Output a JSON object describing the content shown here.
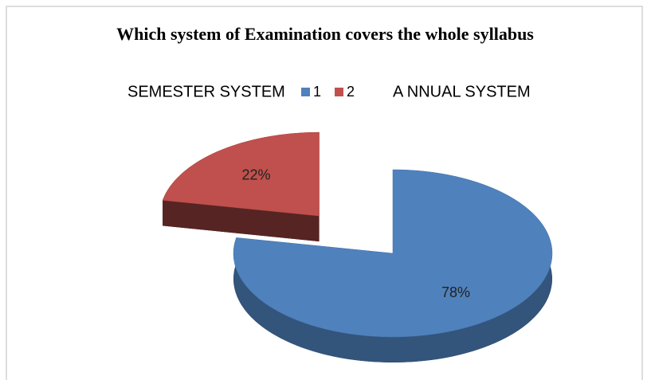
{
  "chart_data": {
    "type": "pie3d",
    "title": "Which system of Examination covers the whole syllabus",
    "annotations": [
      "SEMESTER SYSTEM",
      "A NNUAL SYSTEM"
    ],
    "categories": [
      "1",
      "2"
    ],
    "values": [
      78,
      22
    ],
    "value_labels": [
      "78%",
      "22%"
    ],
    "colors": [
      "#4f81bd",
      "#c0504d"
    ],
    "exploded": [
      false,
      true
    ]
  }
}
